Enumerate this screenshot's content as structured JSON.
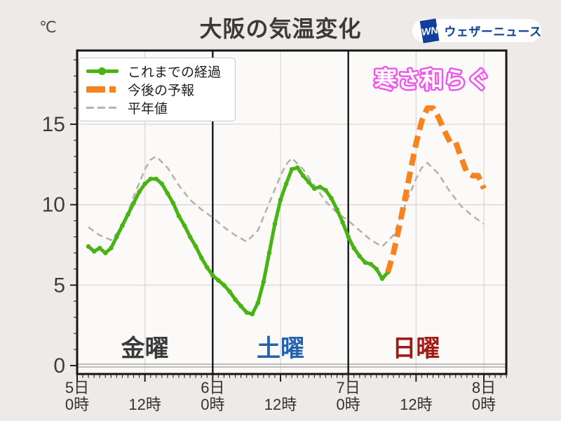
{
  "page": {
    "background": "#edeae7"
  },
  "logo": {
    "mark": "WN",
    "text": "ウェザーニュース",
    "color": "#10409b"
  },
  "chart_data": {
    "type": "line",
    "title": "大阪の気温変化",
    "unit": "℃",
    "x_axis": {
      "ticks": [
        {
          "hour": 0,
          "day": "5日",
          "time": "0時"
        },
        {
          "hour": 12,
          "time": "12時"
        },
        {
          "hour": 24,
          "day": "6日",
          "time": "0時"
        },
        {
          "hour": 36,
          "time": "12時"
        },
        {
          "hour": 48,
          "day": "7日",
          "time": "0時"
        },
        {
          "hour": 60,
          "time": "12時"
        },
        {
          "hour": 72,
          "day": "8日",
          "time": "0時"
        }
      ],
      "minor_gridline_hours": [
        12,
        36,
        60,
        72
      ],
      "day_separator_hours": [
        24,
        48
      ],
      "hours_shown": 76
    },
    "y_axis": {
      "ticks": [
        0,
        5,
        10,
        15
      ],
      "gridlines": [
        5,
        10,
        15
      ],
      "zero_line": 0,
      "range": [
        -0.5,
        19.6
      ]
    },
    "series": [
      {
        "key": "past",
        "name": "これまでの経過",
        "color": "#48b414",
        "line": "solid",
        "width": 5,
        "markers": true,
        "points": [
          [
            2,
            7.4
          ],
          [
            3,
            7.1
          ],
          [
            4,
            7.3
          ],
          [
            5,
            7.0
          ],
          [
            6,
            7.3
          ],
          [
            7,
            8.0
          ],
          [
            8,
            8.7
          ],
          [
            9,
            9.4
          ],
          [
            10,
            10.1
          ],
          [
            11,
            10.8
          ],
          [
            12,
            11.3
          ],
          [
            13,
            11.6
          ],
          [
            14,
            11.6
          ],
          [
            15,
            11.3
          ],
          [
            16,
            10.7
          ],
          [
            17,
            10.1
          ],
          [
            18,
            9.3
          ],
          [
            19,
            8.7
          ],
          [
            20,
            8.0
          ],
          [
            21,
            7.4
          ],
          [
            22,
            6.7
          ],
          [
            23,
            6.1
          ],
          [
            24,
            5.6
          ],
          [
            25,
            5.3
          ],
          [
            26,
            5.0
          ],
          [
            27,
            4.6
          ],
          [
            28,
            4.1
          ],
          [
            29,
            3.7
          ],
          [
            30,
            3.3
          ],
          [
            31,
            3.2
          ],
          [
            32,
            3.9
          ],
          [
            33,
            5.2
          ],
          [
            34,
            7.0
          ],
          [
            35,
            8.8
          ],
          [
            36,
            10.3
          ],
          [
            37,
            11.3
          ],
          [
            38,
            12.2
          ],
          [
            39,
            12.3
          ],
          [
            40,
            11.8
          ],
          [
            41,
            11.4
          ],
          [
            42,
            11.0
          ],
          [
            43,
            11.1
          ],
          [
            44,
            10.9
          ],
          [
            45,
            10.4
          ],
          [
            46,
            9.7
          ],
          [
            47,
            8.9
          ],
          [
            48,
            8.0
          ],
          [
            49,
            7.3
          ],
          [
            50,
            6.8
          ],
          [
            51,
            6.4
          ],
          [
            52,
            6.3
          ],
          [
            53,
            6.0
          ],
          [
            54,
            5.4
          ],
          [
            55,
            5.8
          ]
        ]
      },
      {
        "key": "forecast",
        "name": "今後の予報",
        "color": "#f6831e",
        "line": "dashed",
        "width": 8,
        "dash": [
          17,
          9
        ],
        "markers": false,
        "points": [
          [
            55,
            5.8
          ],
          [
            56,
            7.0
          ],
          [
            57,
            8.6
          ],
          [
            58,
            10.3
          ],
          [
            59,
            12.1
          ],
          [
            60,
            13.8
          ],
          [
            61,
            15.2
          ],
          [
            62,
            16.0
          ],
          [
            63,
            16.0
          ],
          [
            64,
            15.4
          ],
          [
            65,
            14.6
          ],
          [
            66,
            13.9
          ],
          [
            67,
            13.9
          ],
          [
            68,
            12.9
          ],
          [
            69,
            12.0
          ],
          [
            70,
            11.8
          ],
          [
            71,
            11.8
          ],
          [
            72,
            11.0
          ]
        ]
      },
      {
        "key": "normal",
        "name": "平年値",
        "color": "#b5b3b0",
        "line": "dashed",
        "width": 2.6,
        "dash": [
          9,
          6
        ],
        "markers": false,
        "points": [
          [
            2,
            8.6
          ],
          [
            4,
            8.1
          ],
          [
            6,
            7.8
          ],
          [
            8,
            8.6
          ],
          [
            10,
            10.5
          ],
          [
            12,
            12.2
          ],
          [
            13,
            12.8
          ],
          [
            14,
            13.0
          ],
          [
            16,
            12.3
          ],
          [
            18,
            11.2
          ],
          [
            20,
            10.3
          ],
          [
            22,
            9.7
          ],
          [
            24,
            9.2
          ],
          [
            26,
            8.6
          ],
          [
            28,
            8.1
          ],
          [
            30,
            7.7
          ],
          [
            32,
            8.4
          ],
          [
            34,
            10.1
          ],
          [
            36,
            11.8
          ],
          [
            37,
            12.5
          ],
          [
            38,
            12.9
          ],
          [
            40,
            12.2
          ],
          [
            42,
            11.2
          ],
          [
            44,
            10.2
          ],
          [
            46,
            9.5
          ],
          [
            48,
            9.0
          ],
          [
            50,
            8.4
          ],
          [
            52,
            7.8
          ],
          [
            54,
            7.4
          ],
          [
            56,
            8.1
          ],
          [
            58,
            9.9
          ],
          [
            60,
            11.6
          ],
          [
            61,
            12.3
          ],
          [
            62,
            12.6
          ],
          [
            64,
            11.9
          ],
          [
            66,
            10.8
          ],
          [
            68,
            9.9
          ],
          [
            70,
            9.3
          ],
          [
            72,
            8.8
          ]
        ]
      }
    ],
    "day_labels": [
      {
        "text": "金曜",
        "hour": 12,
        "temp": 1.1,
        "color": "#3a3a3a"
      },
      {
        "text": "土曜",
        "hour": 36,
        "temp": 1.1,
        "color": "#2263ac"
      },
      {
        "text": "日曜",
        "hour": 60,
        "temp": 1.1,
        "color": "#9f1b13"
      }
    ],
    "annotation": {
      "text": "寒さ和らぐ",
      "hour": 62.8,
      "temp": 17.8,
      "fill": "#ffffff",
      "stroke": "#ee58ea"
    }
  }
}
